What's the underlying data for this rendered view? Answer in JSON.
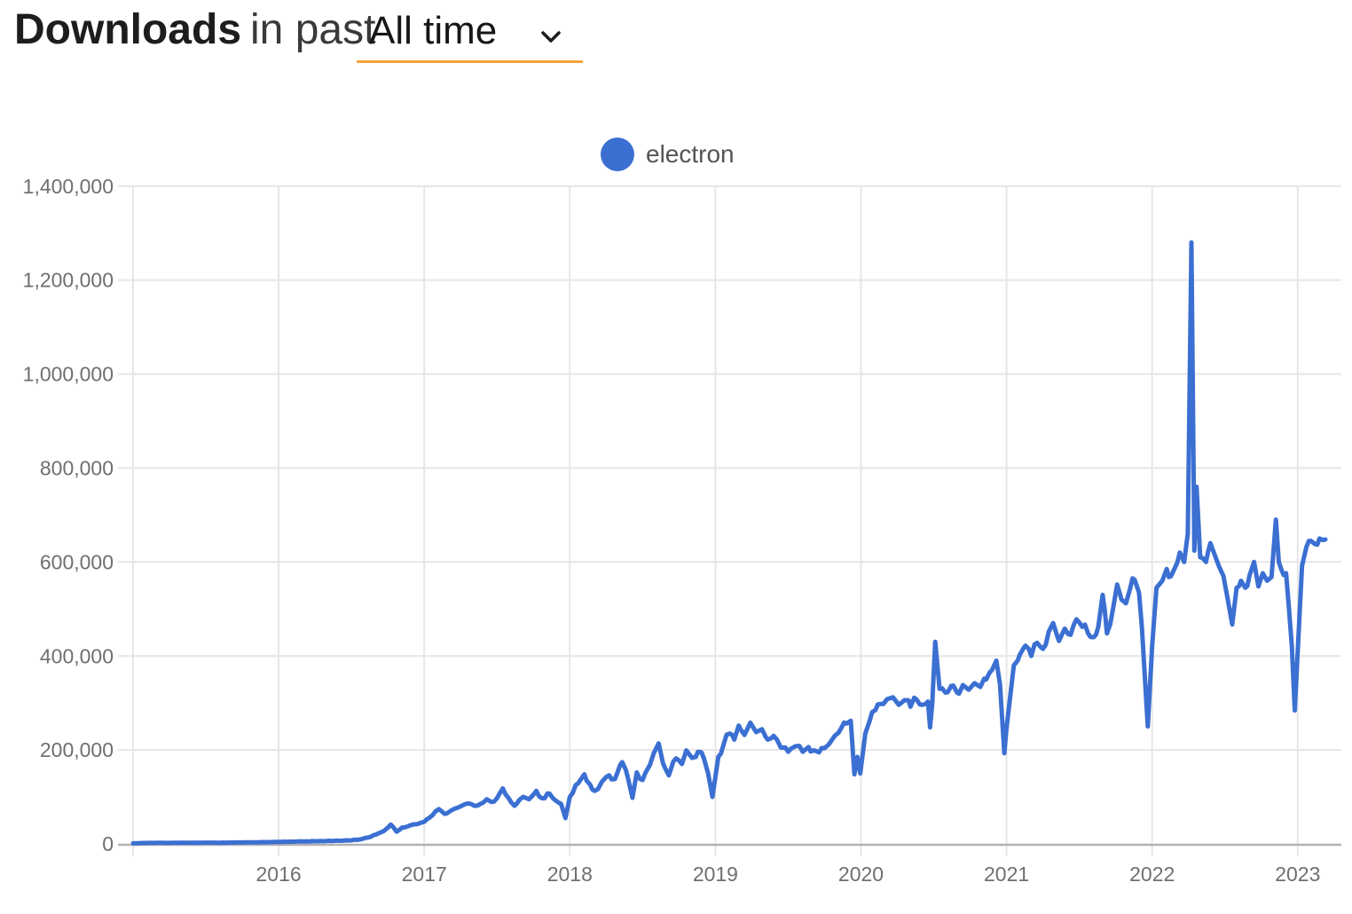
{
  "header": {
    "title_bold": "Downloads",
    "title_suffix": "in past",
    "range_value": "All time"
  },
  "legend": {
    "label": "electron",
    "color": "#3b6fd2"
  },
  "colors": {
    "line": "#3b6fd2",
    "select_underline": "#f5a33a",
    "gridline": "#e6e6e6",
    "axis_line": "#b2b2b2",
    "tick_text": "#6f6f6f"
  },
  "chart_data": {
    "type": "line",
    "title": "Downloads in past All time",
    "xlabel": "",
    "ylabel": "",
    "legend_position": "top-center",
    "grid": true,
    "xlim": [
      2015.0,
      2023.3
    ],
    "ylim": [
      0,
      1400000
    ],
    "x_gridline_years": [
      2015,
      2016,
      2017,
      2018,
      2019,
      2020,
      2021,
      2022,
      2023
    ],
    "x_ticks": [
      2016,
      2017,
      2018,
      2019,
      2020,
      2021,
      2022,
      2023
    ],
    "x_tick_labels": [
      "2016",
      "2017",
      "2018",
      "2019",
      "2020",
      "2021",
      "2022",
      "2023"
    ],
    "y_ticks": [
      0,
      200000,
      400000,
      600000,
      800000,
      1000000,
      1200000,
      1400000
    ],
    "y_tick_labels": [
      "0",
      "200,000",
      "400,000",
      "600,000",
      "800,000",
      "1,000,000",
      "1,200,000",
      "1,400,000"
    ],
    "series": [
      {
        "name": "electron",
        "color": "#3b6fd2",
        "points": [
          [
            2015.0,
            1200
          ],
          [
            2015.08,
            1900
          ],
          [
            2015.17,
            2300
          ],
          [
            2015.25,
            2100
          ],
          [
            2015.33,
            2500
          ],
          [
            2015.42,
            2300
          ],
          [
            2015.5,
            2700
          ],
          [
            2015.58,
            2500
          ],
          [
            2015.67,
            2900
          ],
          [
            2015.75,
            3100
          ],
          [
            2015.83,
            3300
          ],
          [
            2015.92,
            3700
          ],
          [
            2016.0,
            4300
          ],
          [
            2016.08,
            4700
          ],
          [
            2016.17,
            5300
          ],
          [
            2016.25,
            5700
          ],
          [
            2016.33,
            6300
          ],
          [
            2016.42,
            6700
          ],
          [
            2016.5,
            7600
          ],
          [
            2016.56,
            9500
          ],
          [
            2016.62,
            14000
          ],
          [
            2016.67,
            20000
          ],
          [
            2016.72,
            27000
          ],
          [
            2016.77,
            41000
          ],
          [
            2016.81,
            26000
          ],
          [
            2016.85,
            35000
          ],
          [
            2016.9,
            39000
          ],
          [
            2016.95,
            42000
          ],
          [
            2017.0,
            47000
          ],
          [
            2017.06,
            62000
          ],
          [
            2017.1,
            74000
          ],
          [
            2017.14,
            64000
          ],
          [
            2017.19,
            72000
          ],
          [
            2017.25,
            80000
          ],
          [
            2017.31,
            86000
          ],
          [
            2017.37,
            82000
          ],
          [
            2017.43,
            95000
          ],
          [
            2017.48,
            90000
          ],
          [
            2017.54,
            118000
          ],
          [
            2017.58,
            97000
          ],
          [
            2017.62,
            81000
          ],
          [
            2017.68,
            100000
          ],
          [
            2017.72,
            95000
          ],
          [
            2017.77,
            113000
          ],
          [
            2017.81,
            97000
          ],
          [
            2017.86,
            107000
          ],
          [
            2017.9,
            93000
          ],
          [
            2017.94,
            85000
          ],
          [
            2017.97,
            55000
          ],
          [
            2018.0,
            100000
          ],
          [
            2018.04,
            125000
          ],
          [
            2018.1,
            148000
          ],
          [
            2018.14,
            126000
          ],
          [
            2018.17,
            113000
          ],
          [
            2018.22,
            132000
          ],
          [
            2018.27,
            146000
          ],
          [
            2018.31,
            138000
          ],
          [
            2018.36,
            174000
          ],
          [
            2018.4,
            140000
          ],
          [
            2018.43,
            98000
          ],
          [
            2018.46,
            152000
          ],
          [
            2018.5,
            136000
          ],
          [
            2018.55,
            168000
          ],
          [
            2018.61,
            214000
          ],
          [
            2018.64,
            172000
          ],
          [
            2018.68,
            146000
          ],
          [
            2018.73,
            182000
          ],
          [
            2018.77,
            170000
          ],
          [
            2018.8,
            199000
          ],
          [
            2018.84,
            183000
          ],
          [
            2018.88,
            196000
          ],
          [
            2018.92,
            183000
          ],
          [
            2018.95,
            150000
          ],
          [
            2018.98,
            100000
          ],
          [
            2019.02,
            185000
          ],
          [
            2019.06,
            215000
          ],
          [
            2019.1,
            235000
          ],
          [
            2019.13,
            222000
          ],
          [
            2019.16,
            252000
          ],
          [
            2019.2,
            232000
          ],
          [
            2019.24,
            258000
          ],
          [
            2019.28,
            238000
          ],
          [
            2019.32,
            244000
          ],
          [
            2019.36,
            222000
          ],
          [
            2019.4,
            230000
          ],
          [
            2019.45,
            205000
          ],
          [
            2019.5,
            196000
          ],
          [
            2019.55,
            208000
          ],
          [
            2019.6,
            196000
          ],
          [
            2019.64,
            206000
          ],
          [
            2019.69,
            198000
          ],
          [
            2019.73,
            204000
          ],
          [
            2019.78,
            212000
          ],
          [
            2019.82,
            230000
          ],
          [
            2019.86,
            244000
          ],
          [
            2019.9,
            256000
          ],
          [
            2019.93,
            262000
          ],
          [
            2019.955,
            148000
          ],
          [
            2019.975,
            185000
          ],
          [
            2019.995,
            150000
          ],
          [
            2020.03,
            235000
          ],
          [
            2020.06,
            262000
          ],
          [
            2020.1,
            285000
          ],
          [
            2020.14,
            298000
          ],
          [
            2020.18,
            308000
          ],
          [
            2020.22,
            312000
          ],
          [
            2020.26,
            296000
          ],
          [
            2020.3,
            306000
          ],
          [
            2020.34,
            292000
          ],
          [
            2020.38,
            308000
          ],
          [
            2020.42,
            296000
          ],
          [
            2020.46,
            303000
          ],
          [
            2020.475,
            248000
          ],
          [
            2020.49,
            300000
          ],
          [
            2020.51,
            430000
          ],
          [
            2020.54,
            330000
          ],
          [
            2020.58,
            322000
          ],
          [
            2020.62,
            336000
          ],
          [
            2020.66,
            322000
          ],
          [
            2020.7,
            338000
          ],
          [
            2020.74,
            328000
          ],
          [
            2020.78,
            342000
          ],
          [
            2020.82,
            334000
          ],
          [
            2020.86,
            350000
          ],
          [
            2020.9,
            370000
          ],
          [
            2020.93,
            390000
          ],
          [
            2020.955,
            340000
          ],
          [
            2020.985,
            193000
          ],
          [
            2021.02,
            300000
          ],
          [
            2021.05,
            380000
          ],
          [
            2021.09,
            402000
          ],
          [
            2021.13,
            422000
          ],
          [
            2021.17,
            400000
          ],
          [
            2021.21,
            428000
          ],
          [
            2021.25,
            415000
          ],
          [
            2021.29,
            452000
          ],
          [
            2021.32,
            470000
          ],
          [
            2021.36,
            432000
          ],
          [
            2021.4,
            458000
          ],
          [
            2021.44,
            445000
          ],
          [
            2021.48,
            478000
          ],
          [
            2021.52,
            462000
          ],
          [
            2021.56,
            448000
          ],
          [
            2021.6,
            440000
          ],
          [
            2021.63,
            462000
          ],
          [
            2021.66,
            530000
          ],
          [
            2021.69,
            448000
          ],
          [
            2021.73,
            498000
          ],
          [
            2021.76,
            552000
          ],
          [
            2021.79,
            520000
          ],
          [
            2021.82,
            512000
          ],
          [
            2021.85,
            545000
          ],
          [
            2021.88,
            562000
          ],
          [
            2021.91,
            535000
          ],
          [
            2021.93,
            460000
          ],
          [
            2021.97,
            250000
          ],
          [
            2022.0,
            420000
          ],
          [
            2022.03,
            545000
          ],
          [
            2022.07,
            560000
          ],
          [
            2022.1,
            585000
          ],
          [
            2022.13,
            570000
          ],
          [
            2022.16,
            590000
          ],
          [
            2022.19,
            620000
          ],
          [
            2022.22,
            600000
          ],
          [
            2022.245,
            660000
          ],
          [
            2022.27,
            1280000
          ],
          [
            2022.29,
            624000
          ],
          [
            2022.305,
            760000
          ],
          [
            2022.33,
            610000
          ],
          [
            2022.37,
            600000
          ],
          [
            2022.4,
            640000
          ],
          [
            2022.43,
            615000
          ],
          [
            2022.46,
            590000
          ],
          [
            2022.49,
            570000
          ],
          [
            2022.52,
            520000
          ],
          [
            2022.55,
            467000
          ],
          [
            2022.58,
            545000
          ],
          [
            2022.61,
            560000
          ],
          [
            2022.64,
            545000
          ],
          [
            2022.67,
            572000
          ],
          [
            2022.7,
            600000
          ],
          [
            2022.73,
            548000
          ],
          [
            2022.76,
            576000
          ],
          [
            2022.79,
            560000
          ],
          [
            2022.82,
            568000
          ],
          [
            2022.85,
            690000
          ],
          [
            2022.87,
            600000
          ],
          [
            2022.89,
            582000
          ],
          [
            2022.92,
            576000
          ],
          [
            2022.94,
            500000
          ],
          [
            2022.96,
            420000
          ],
          [
            2022.98,
            284000
          ],
          [
            2023.01,
            470000
          ],
          [
            2023.03,
            592000
          ],
          [
            2023.06,
            632000
          ],
          [
            2023.09,
            645000
          ],
          [
            2023.12,
            638000
          ],
          [
            2023.15,
            650000
          ],
          [
            2023.19,
            648000
          ]
        ]
      }
    ]
  }
}
